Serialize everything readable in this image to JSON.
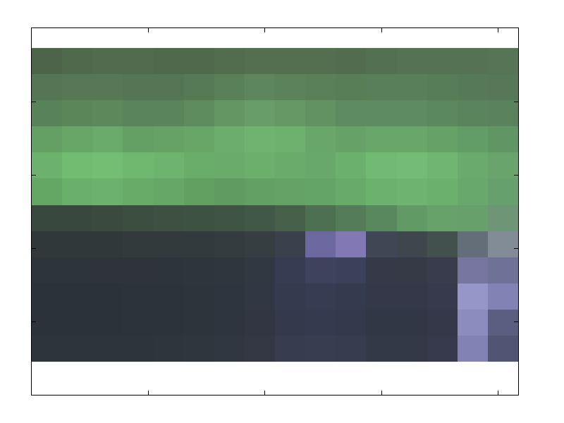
{
  "chart_data": {
    "type": "image",
    "xlim": [
      0,
      4.17
    ],
    "xticks": [
      0,
      1,
      2,
      3,
      4
    ],
    "ylim": [
      5,
      0
    ],
    "yticks": [
      0,
      1,
      2,
      3,
      4,
      5
    ],
    "tick_labels": false,
    "grid": false,
    "image_x": [
      0,
      4.17
    ],
    "image_y": [
      0.27,
      4.55
    ],
    "cells": [
      [
        [
          78,
          100,
          74
        ],
        [
          80,
          104,
          76
        ],
        [
          82,
          106,
          78
        ],
        [
          82,
          106,
          78
        ],
        [
          80,
          104,
          76
        ],
        [
          80,
          104,
          76
        ],
        [
          82,
          108,
          78
        ],
        [
          84,
          110,
          80
        ],
        [
          84,
          110,
          80
        ],
        [
          84,
          110,
          80
        ],
        [
          82,
          108,
          80
        ],
        [
          84,
          112,
          82
        ],
        [
          86,
          114,
          84
        ],
        [
          86,
          114,
          84
        ],
        [
          86,
          114,
          84
        ],
        [
          88,
          116,
          86
        ]
      ],
      [
        [
          84,
          118,
          84
        ],
        [
          86,
          120,
          86
        ],
        [
          86,
          120,
          86
        ],
        [
          84,
          118,
          84
        ],
        [
          84,
          118,
          84
        ],
        [
          86,
          122,
          86
        ],
        [
          90,
          128,
          90
        ],
        [
          94,
          134,
          94
        ],
        [
          92,
          130,
          92
        ],
        [
          90,
          128,
          90
        ],
        [
          88,
          126,
          88
        ],
        [
          88,
          126,
          90
        ],
        [
          88,
          126,
          90
        ],
        [
          86,
          124,
          88
        ],
        [
          86,
          122,
          88
        ],
        [
          86,
          120,
          88
        ]
      ],
      [
        [
          88,
          130,
          88
        ],
        [
          90,
          134,
          90
        ],
        [
          92,
          136,
          92
        ],
        [
          90,
          132,
          90
        ],
        [
          90,
          132,
          90
        ],
        [
          94,
          140,
          94
        ],
        [
          100,
          150,
          100
        ],
        [
          104,
          156,
          104
        ],
        [
          102,
          152,
          102
        ],
        [
          98,
          146,
          98
        ],
        [
          94,
          140,
          96
        ],
        [
          94,
          140,
          96
        ],
        [
          94,
          140,
          96
        ],
        [
          92,
          136,
          94
        ],
        [
          90,
          132,
          92
        ],
        [
          90,
          130,
          92
        ]
      ],
      [
        [
          100,
          160,
          100
        ],
        [
          104,
          166,
          104
        ],
        [
          106,
          170,
          106
        ],
        [
          100,
          160,
          100
        ],
        [
          102,
          162,
          102
        ],
        [
          104,
          166,
          104
        ],
        [
          108,
          172,
          108
        ],
        [
          112,
          178,
          112
        ],
        [
          110,
          176,
          110
        ],
        [
          104,
          166,
          106
        ],
        [
          102,
          162,
          104
        ],
        [
          104,
          166,
          106
        ],
        [
          104,
          166,
          106
        ],
        [
          102,
          162,
          104
        ],
        [
          98,
          156,
          102
        ],
        [
          96,
          150,
          100
        ]
      ],
      [
        [
          108,
          178,
          108
        ],
        [
          114,
          188,
          114
        ],
        [
          116,
          190,
          116
        ],
        [
          112,
          184,
          112
        ],
        [
          110,
          180,
          110
        ],
        [
          106,
          172,
          106
        ],
        [
          106,
          170,
          106
        ],
        [
          108,
          174,
          108
        ],
        [
          106,
          170,
          106
        ],
        [
          104,
          168,
          106
        ],
        [
          108,
          176,
          110
        ],
        [
          114,
          186,
          116
        ],
        [
          116,
          188,
          118
        ],
        [
          112,
          182,
          114
        ],
        [
          106,
          170,
          108
        ],
        [
          104,
          164,
          108
        ]
      ],
      [
        [
          100,
          166,
          100
        ],
        [
          106,
          176,
          106
        ],
        [
          108,
          178,
          108
        ],
        [
          104,
          170,
          104
        ],
        [
          102,
          166,
          102
        ],
        [
          98,
          160,
          98
        ],
        [
          96,
          156,
          98
        ],
        [
          98,
          160,
          100
        ],
        [
          100,
          162,
          102
        ],
        [
          100,
          164,
          102
        ],
        [
          104,
          170,
          106
        ],
        [
          108,
          178,
          110
        ],
        [
          110,
          180,
          112
        ],
        [
          108,
          176,
          110
        ],
        [
          104,
          168,
          108
        ],
        [
          102,
          160,
          108
        ]
      ],
      [
        [
          56,
          72,
          62
        ],
        [
          56,
          72,
          62
        ],
        [
          58,
          74,
          62
        ],
        [
          60,
          78,
          64
        ],
        [
          62,
          80,
          66
        ],
        [
          62,
          82,
          66
        ],
        [
          64,
          84,
          68
        ],
        [
          66,
          88,
          70
        ],
        [
          70,
          96,
          74
        ],
        [
          78,
          112,
          82
        ],
        [
          84,
          124,
          88
        ],
        [
          90,
          136,
          94
        ],
        [
          98,
          154,
          102
        ],
        [
          102,
          162,
          106
        ],
        [
          104,
          160,
          108
        ],
        [
          110,
          150,
          118
        ]
      ],
      [
        [
          48,
          56,
          58
        ],
        [
          48,
          56,
          58
        ],
        [
          48,
          56,
          58
        ],
        [
          50,
          58,
          60
        ],
        [
          50,
          58,
          60
        ],
        [
          50,
          58,
          62
        ],
        [
          52,
          60,
          64
        ],
        [
          54,
          62,
          66
        ],
        [
          58,
          64,
          76
        ],
        [
          110,
          104,
          160
        ],
        [
          130,
          120,
          180
        ],
        [
          64,
          70,
          84
        ],
        [
          62,
          72,
          76
        ],
        [
          66,
          80,
          78
        ],
        [
          100,
          110,
          120
        ],
        [
          130,
          140,
          150
        ]
      ],
      [
        [
          45,
          52,
          58
        ],
        [
          45,
          52,
          58
        ],
        [
          46,
          52,
          58
        ],
        [
          46,
          52,
          58
        ],
        [
          46,
          52,
          60
        ],
        [
          47,
          53,
          60
        ],
        [
          48,
          54,
          62
        ],
        [
          50,
          56,
          66
        ],
        [
          56,
          60,
          82
        ],
        [
          62,
          66,
          92
        ],
        [
          60,
          64,
          88
        ],
        [
          54,
          58,
          72
        ],
        [
          54,
          58,
          70
        ],
        [
          56,
          60,
          76
        ],
        [
          118,
          118,
          160
        ],
        [
          110,
          114,
          150
        ]
      ],
      [
        [
          44,
          50,
          58
        ],
        [
          44,
          50,
          58
        ],
        [
          44,
          50,
          58
        ],
        [
          45,
          51,
          58
        ],
        [
          45,
          51,
          58
        ],
        [
          46,
          52,
          60
        ],
        [
          47,
          53,
          62
        ],
        [
          50,
          55,
          68
        ],
        [
          54,
          58,
          78
        ],
        [
          56,
          60,
          82
        ],
        [
          54,
          58,
          78
        ],
        [
          52,
          56,
          72
        ],
        [
          52,
          56,
          72
        ],
        [
          54,
          58,
          76
        ],
        [
          150,
          150,
          200
        ],
        [
          130,
          130,
          180
        ]
      ],
      [
        [
          44,
          50,
          58
        ],
        [
          44,
          50,
          58
        ],
        [
          44,
          50,
          58
        ],
        [
          45,
          51,
          58
        ],
        [
          45,
          51,
          58
        ],
        [
          46,
          52,
          60
        ],
        [
          47,
          53,
          62
        ],
        [
          49,
          54,
          66
        ],
        [
          52,
          57,
          75
        ],
        [
          54,
          58,
          78
        ],
        [
          52,
          57,
          75
        ],
        [
          50,
          55,
          70
        ],
        [
          50,
          55,
          70
        ],
        [
          52,
          56,
          72
        ],
        [
          140,
          140,
          190
        ],
        [
          90,
          95,
          130
        ]
      ],
      [
        [
          46,
          52,
          60
        ],
        [
          46,
          52,
          60
        ],
        [
          46,
          52,
          60
        ],
        [
          46,
          52,
          60
        ],
        [
          47,
          53,
          61
        ],
        [
          48,
          54,
          62
        ],
        [
          49,
          55,
          64
        ],
        [
          51,
          56,
          68
        ],
        [
          55,
          60,
          78
        ],
        [
          56,
          61,
          80
        ],
        [
          55,
          60,
          78
        ],
        [
          52,
          57,
          72
        ],
        [
          52,
          57,
          72
        ],
        [
          54,
          58,
          76
        ],
        [
          130,
          130,
          180
        ],
        [
          80,
          85,
          115
        ]
      ]
    ]
  }
}
